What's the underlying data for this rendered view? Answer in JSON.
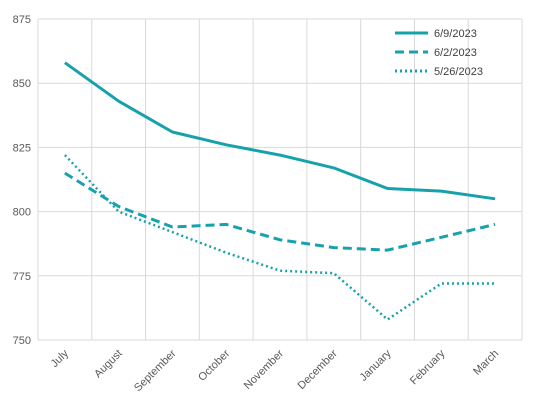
{
  "chart_data": {
    "type": "line",
    "categories": [
      "July",
      "August",
      "September",
      "October",
      "November",
      "December",
      "January",
      "February",
      "March"
    ],
    "ylim": [
      750,
      875
    ],
    "yticks": [
      750,
      775,
      800,
      825,
      850,
      875
    ],
    "grid": true,
    "legend_position": "top-right",
    "series": [
      {
        "name": "6/9/2023",
        "style": "solid",
        "color": "#17a2ab",
        "values": [
          858,
          843,
          831,
          826,
          822,
          817,
          809,
          808,
          805
        ]
      },
      {
        "name": "6/2/2023",
        "style": "dashed",
        "color": "#17a2ab",
        "values": [
          815,
          802,
          794,
          795,
          789,
          786,
          785,
          790,
          795
        ]
      },
      {
        "name": "5/26/2023",
        "style": "dotted",
        "color": "#17a2ab",
        "values": [
          822,
          800,
          792,
          784,
          777,
          776,
          758,
          772,
          772
        ]
      }
    ]
  }
}
